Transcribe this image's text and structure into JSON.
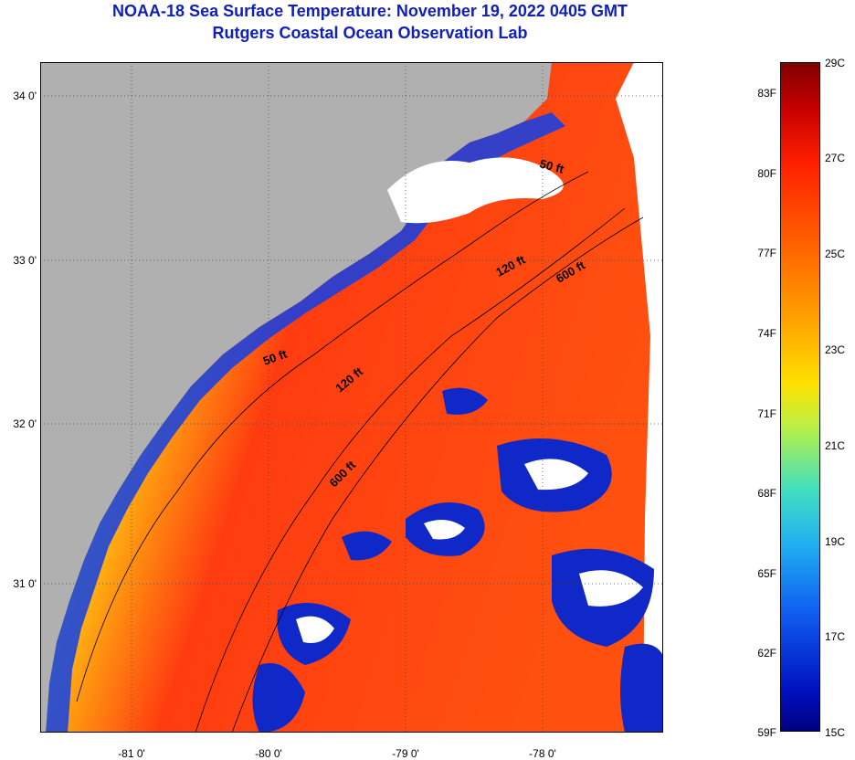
{
  "title": {
    "line1": "NOAA-18 Sea Surface Temperature:  November 19, 2022 0405 GMT",
    "line2": "Rutgers Coastal Ocean Observation Lab"
  },
  "map": {
    "lat_labels": [
      "34 0'",
      "33 0'",
      "32 0'",
      "31 0'"
    ],
    "lon_labels": [
      "-81 0'",
      "-80 0'",
      "-79 0'",
      "-78 0'"
    ],
    "contour_labels": {
      "c50_north": "50 ft",
      "c120_north": "120 ft",
      "c600_north": "600 ft",
      "c50_south": "50 ft",
      "c120_south": "120 ft",
      "c600_south": "600 ft"
    },
    "colors": {
      "land": "#b0b0b0",
      "cloud": "#ffffff"
    }
  },
  "colorbar": {
    "fahrenheit": [
      "83F",
      "80F",
      "77F",
      "74F",
      "71F",
      "68F",
      "65F",
      "62F",
      "59F"
    ],
    "celsius": [
      "29C",
      "27C",
      "25C",
      "23C",
      "21C",
      "19C",
      "17C",
      "15C"
    ],
    "range_c": [
      15,
      29
    ]
  }
}
